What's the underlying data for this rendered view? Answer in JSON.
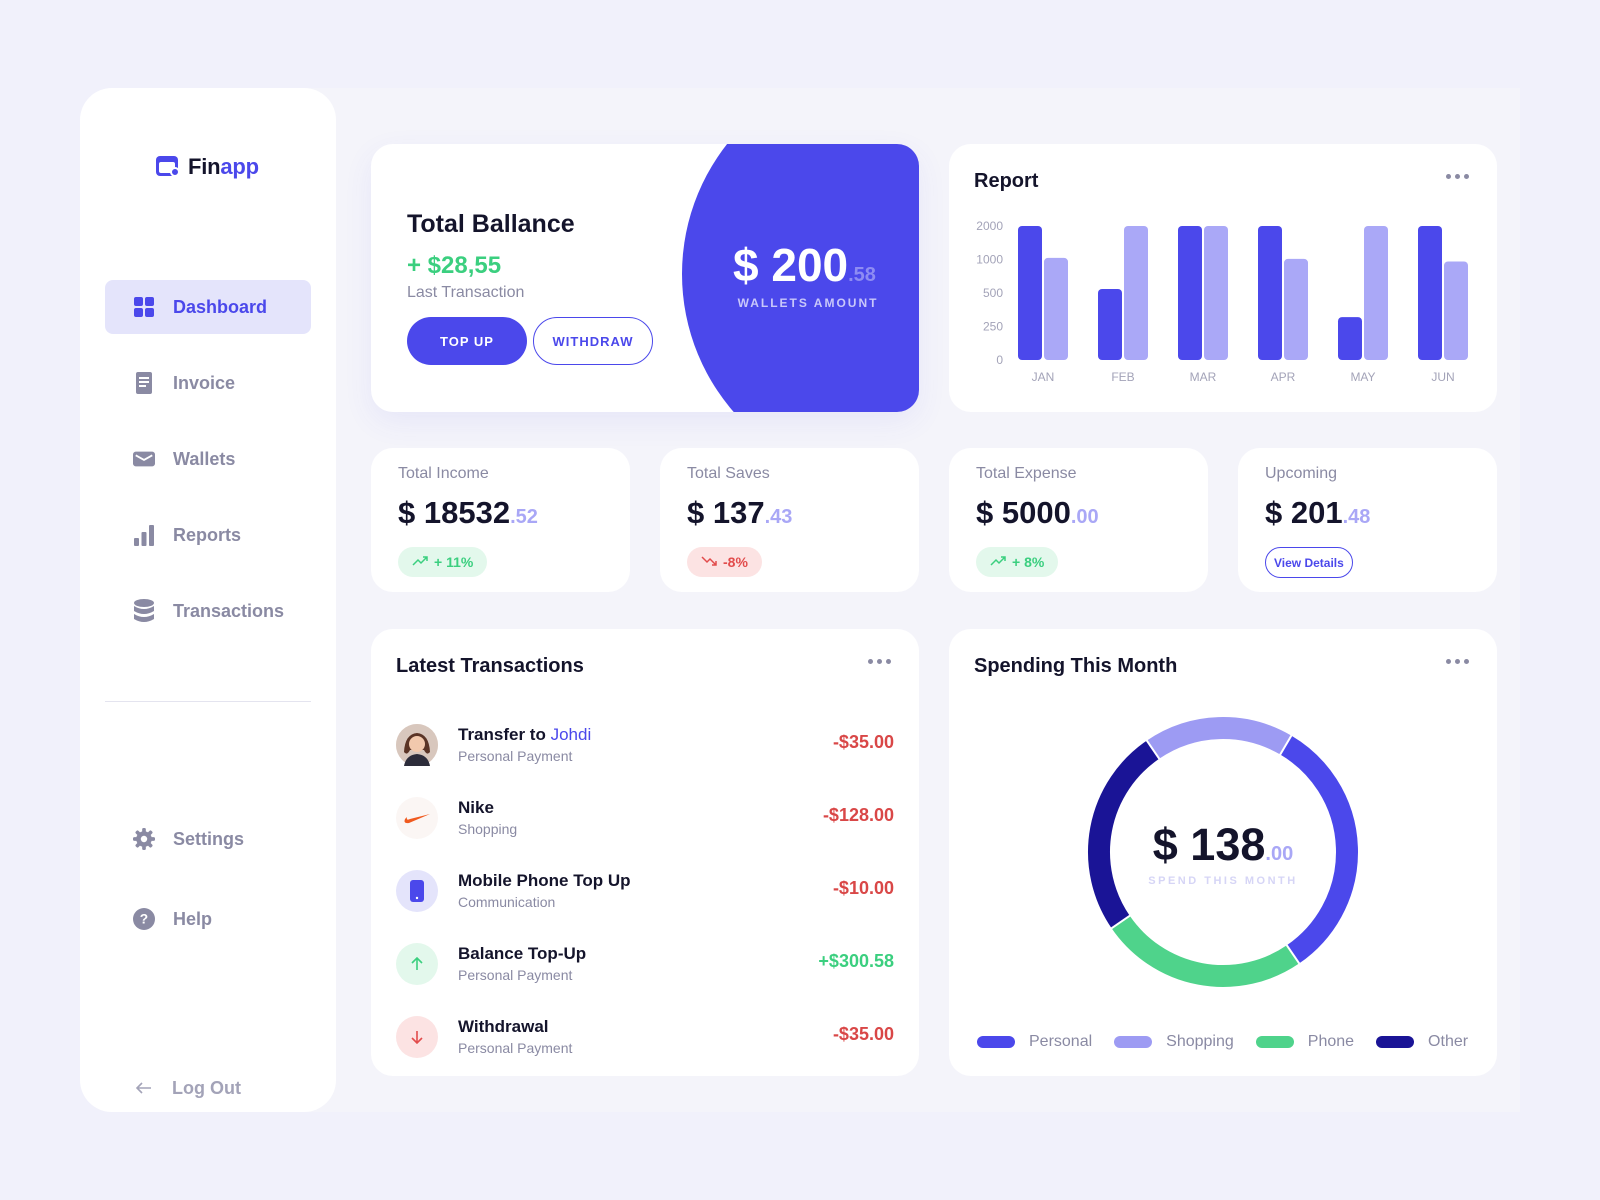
{
  "app": {
    "name_part1": "Fin",
    "name_part2": "app"
  },
  "sidebar": {
    "items": [
      {
        "label": "Dashboard",
        "icon": "grid-icon",
        "active": true
      },
      {
        "label": "Invoice",
        "icon": "document-icon"
      },
      {
        "label": "Wallets",
        "icon": "wallet-icon"
      },
      {
        "label": "Reports",
        "icon": "bar-chart-icon"
      },
      {
        "label": "Transactions",
        "icon": "database-icon"
      }
    ],
    "secondary": [
      {
        "label": "Settings",
        "icon": "gear-icon"
      },
      {
        "label": "Help",
        "icon": "question-icon"
      }
    ],
    "logout": "Log Out"
  },
  "balance": {
    "title": "Total Ballance",
    "delta": "+ $28,55",
    "delta_label": "Last Transaction",
    "top_up": "TOP UP",
    "withdraw": "WITHDRAW",
    "wallet_amount": "$ 200",
    "wallet_cents": ".58",
    "wallet_label": "WALLETS AMOUNT"
  },
  "report": {
    "title": "Report",
    "chart_data": {
      "type": "bar",
      "categories": [
        "JAN",
        "FEB",
        "MAR",
        "APR",
        "MAY",
        "JUN"
      ],
      "yticks": [
        "2000",
        "1000",
        "500",
        "250",
        "0"
      ],
      "series": [
        {
          "values": [
            2000,
            560,
            2000,
            2000,
            320,
            2000
          ]
        },
        {
          "values": [
            1050,
            2000,
            2000,
            1020,
            2000,
            970
          ]
        }
      ],
      "colors": [
        "#4b48eb",
        "#aaa8f7"
      ]
    }
  },
  "stats": [
    {
      "label": "Total Income",
      "value": "$ 18532",
      "cents": ".52",
      "badge": "+ 11%",
      "trend": "up"
    },
    {
      "label": "Total Saves",
      "value": "$ 137",
      "cents": ".43",
      "badge": "-8%",
      "trend": "down"
    },
    {
      "label": "Total Expense",
      "value": "$ 5000",
      "cents": ".00",
      "badge": "+ 8%",
      "trend": "up"
    },
    {
      "label": "Upcoming",
      "value": "$ 201",
      "cents": ".48",
      "button": "View Details"
    }
  ],
  "transactions": {
    "title": "Latest Transactions",
    "items": [
      {
        "name": "Transfer to",
        "highlight": "Johdi",
        "category": "Personal Payment",
        "amount": "-$35.00",
        "sign": "neg"
      },
      {
        "name": "Nike",
        "category": "Shopping",
        "amount": "-$128.00",
        "sign": "neg"
      },
      {
        "name": "Mobile Phone Top Up",
        "category": "Communication",
        "amount": "-$10.00",
        "sign": "neg"
      },
      {
        "name": "Balance Top-Up",
        "category": "Personal Payment",
        "amount": "+$300.58",
        "sign": "pos"
      },
      {
        "name": "Withdrawal",
        "category": "Personal Payment",
        "amount": "-$35.00",
        "sign": "neg"
      }
    ]
  },
  "spending": {
    "title": "Spending This Month",
    "value": "$ 138",
    "cents": ".00",
    "label": "SPEND THIS MONTH",
    "chart_data": {
      "type": "pie",
      "labels": [
        "Personal",
        "Shopping",
        "Phone",
        "Other"
      ],
      "values": [
        32,
        18,
        25,
        25
      ],
      "colors": [
        "#4b48eb",
        "#9d9bf3",
        "#4fd38b",
        "#1a1496"
      ]
    }
  }
}
